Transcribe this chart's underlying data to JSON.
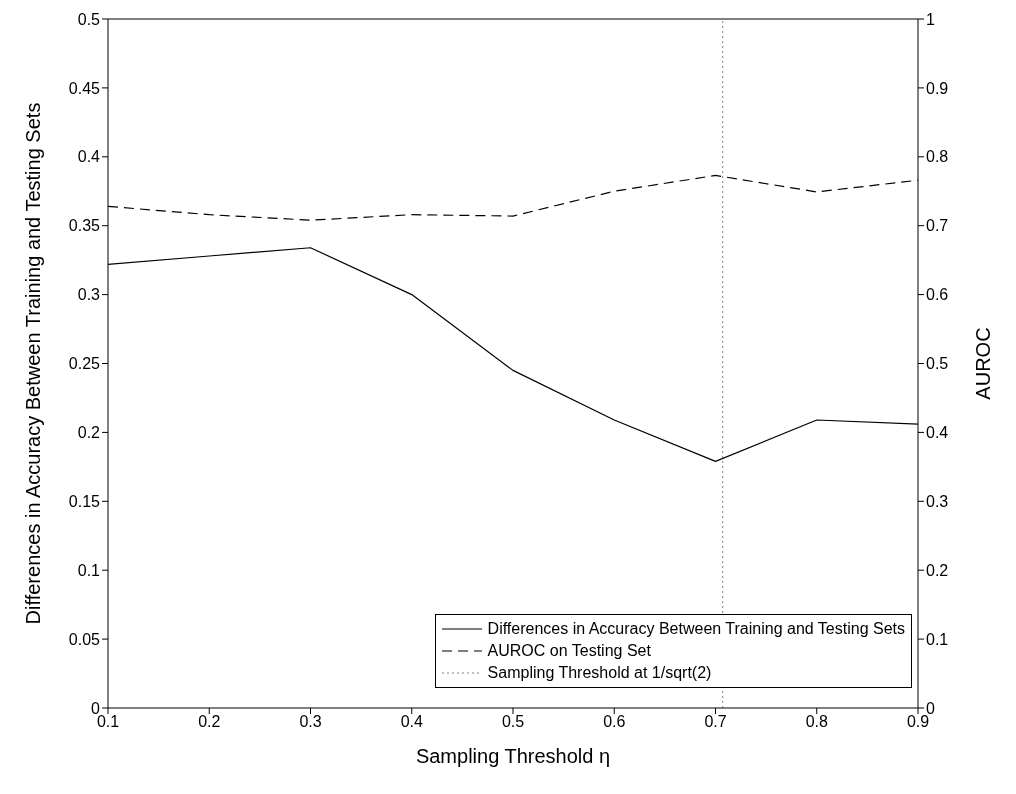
{
  "chart_data": {
    "type": "line",
    "xlabel": "Sampling Threshold η",
    "ylabel": "Differences in Accuracy Between Training and Testing Sets",
    "y2label": "AUROC",
    "x": [
      0.1,
      0.2,
      0.3,
      0.4,
      0.5,
      0.6,
      0.7,
      0.8,
      0.9
    ],
    "series": [
      {
        "name": "Differences in Accuracy Between Training and Testing Sets",
        "color": "#000000",
        "line_style": "solid",
        "values": [
          0.322,
          0.328,
          0.334,
          0.3,
          0.245,
          0.209,
          0.179,
          0.209,
          0.206
        ]
      },
      {
        "name": "AUROC on Testing Set",
        "color": "#000000",
        "line_style": "dashed",
        "axis": "y2",
        "values": [
          0.728,
          0.716,
          0.708,
          0.716,
          0.714,
          0.75,
          0.773,
          0.749,
          0.766
        ]
      }
    ],
    "ref_lines": [
      {
        "axis": "x",
        "value": 0.7071,
        "label": "Sampling Threshold at 1/sqrt(2)",
        "color": "#808080",
        "line_style": "dotted"
      }
    ],
    "xlim": [
      0.1,
      0.9
    ],
    "xticks": [
      0.1,
      0.2,
      0.3,
      0.4,
      0.5,
      0.6,
      0.7,
      0.8,
      0.9
    ],
    "ylim": [
      0,
      0.5
    ],
    "yticks": [
      0,
      0.05,
      0.1,
      0.15,
      0.2,
      0.25,
      0.3,
      0.35,
      0.4,
      0.45,
      0.5
    ],
    "y2lim": [
      0,
      1
    ],
    "y2ticks": [
      0,
      0.1,
      0.2,
      0.3,
      0.4,
      0.5,
      0.6,
      0.7,
      0.8,
      0.9,
      1
    ],
    "grid": false,
    "legend": "bottom right",
    "marker": "none"
  }
}
